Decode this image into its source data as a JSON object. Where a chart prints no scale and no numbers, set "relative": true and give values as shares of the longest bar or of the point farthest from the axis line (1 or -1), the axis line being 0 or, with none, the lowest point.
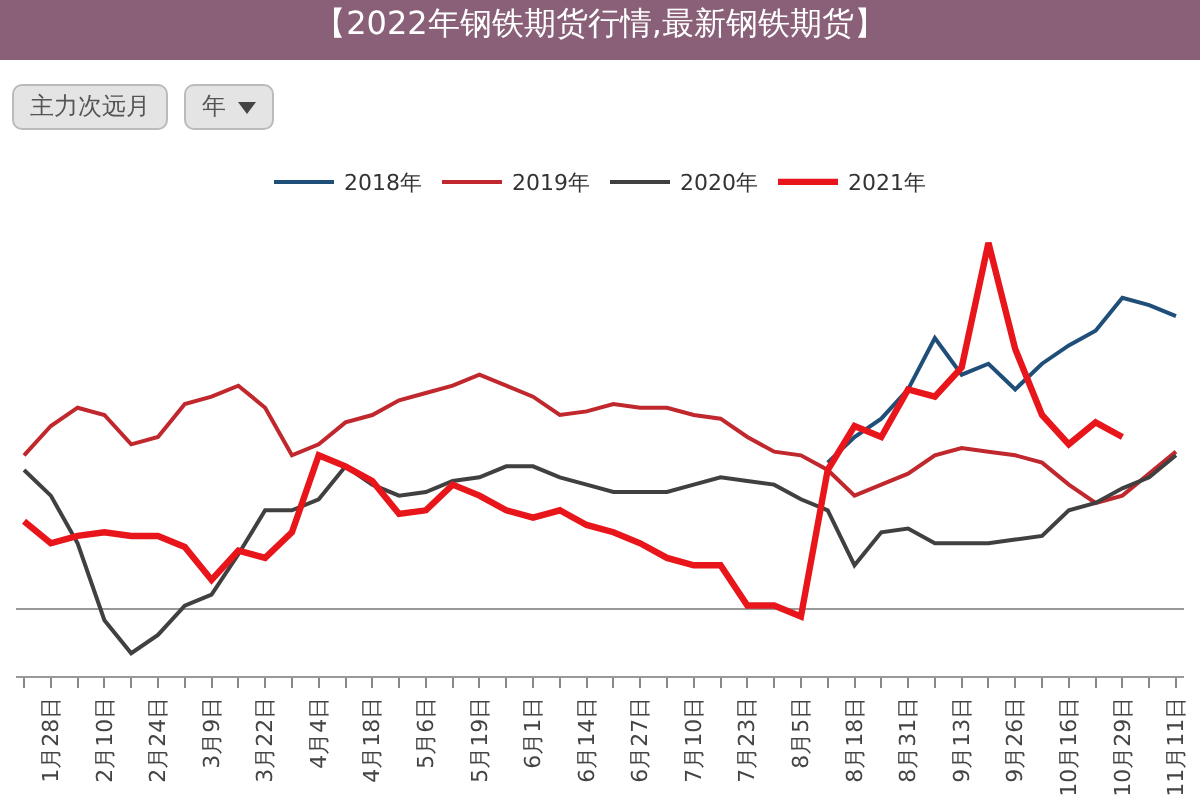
{
  "chart_data": {
    "type": "line",
    "title": "【2022年钢铁期货行情,最新钢铁期货】",
    "annotations": [
      "主力次远月",
      "年"
    ],
    "relative": true,
    "legend": "top",
    "marker": "none",
    "line_style": "solid",
    "categories": [
      null,
      "1月28日",
      null,
      "2月10日",
      null,
      "2月24日",
      null,
      "3月9日",
      null,
      "3月22日",
      null,
      "4月4日",
      null,
      "4月18日",
      null,
      "5月6日",
      null,
      "5月19日",
      null,
      "6月1日",
      null,
      "6月14日",
      null,
      "6月27日",
      null,
      "7月10日",
      null,
      "7月23日",
      null,
      "8月5日",
      null,
      "8月18日",
      null,
      "8月31日",
      null,
      "9月13日",
      null,
      "9月26日",
      null,
      "10月16日",
      null,
      "10月29日",
      null,
      "11月11日"
    ],
    "series": [
      {
        "name": "2018年",
        "color": "#1f4e79",
        "values": [
          null,
          null,
          null,
          null,
          null,
          null,
          null,
          null,
          null,
          null,
          null,
          null,
          null,
          null,
          null,
          null,
          null,
          null,
          null,
          null,
          null,
          null,
          null,
          null,
          null,
          null,
          null,
          null,
          null,
          null,
          0.4,
          0.47,
          0.52,
          0.6,
          0.74,
          0.64,
          0.67,
          0.6,
          0.67,
          0.72,
          0.76,
          0.85,
          0.83,
          0.8
        ]
      },
      {
        "name": "2019年",
        "color": "#c0282d",
        "values": [
          0.42,
          0.5,
          0.55,
          0.53,
          0.45,
          0.47,
          0.56,
          0.58,
          0.61,
          0.55,
          0.42,
          0.45,
          0.51,
          0.53,
          0.57,
          0.59,
          0.61,
          0.64,
          0.61,
          0.58,
          0.53,
          0.54,
          0.56,
          0.55,
          0.55,
          0.53,
          0.52,
          0.47,
          0.43,
          0.42,
          0.38,
          0.31,
          0.34,
          0.37,
          0.42,
          0.44,
          0.43,
          0.42,
          0.4,
          0.34,
          0.29,
          0.31,
          0.37,
          0.43
        ]
      },
      {
        "name": "2020年",
        "color": "#404040",
        "values": [
          0.38,
          0.31,
          0.18,
          -0.03,
          -0.12,
          -0.07,
          0.01,
          0.04,
          0.15,
          0.27,
          0.27,
          0.3,
          0.39,
          0.34,
          0.31,
          0.32,
          0.35,
          0.36,
          0.39,
          0.39,
          0.36,
          0.34,
          0.32,
          0.32,
          0.32,
          0.34,
          0.36,
          0.35,
          0.34,
          0.3,
          0.27,
          0.12,
          0.21,
          0.22,
          0.18,
          0.18,
          0.18,
          0.19,
          0.2,
          0.27,
          0.29,
          0.33,
          0.36,
          0.42
        ]
      },
      {
        "name": "2021年",
        "color": "#e8151b",
        "values": [
          0.24,
          0.18,
          0.2,
          0.21,
          0.2,
          0.2,
          0.17,
          0.08,
          0.16,
          0.14,
          0.21,
          0.42,
          0.39,
          0.35,
          0.26,
          0.27,
          0.34,
          0.31,
          0.27,
          0.25,
          0.27,
          0.23,
          0.21,
          0.18,
          0.14,
          0.12,
          0.12,
          0.01,
          0.01,
          -0.02,
          0.38,
          0.5,
          0.47,
          0.6,
          0.58,
          0.66,
          1,
          0.71,
          0.53,
          0.45,
          0.51,
          0.47,
          null,
          null
        ]
      }
    ]
  }
}
